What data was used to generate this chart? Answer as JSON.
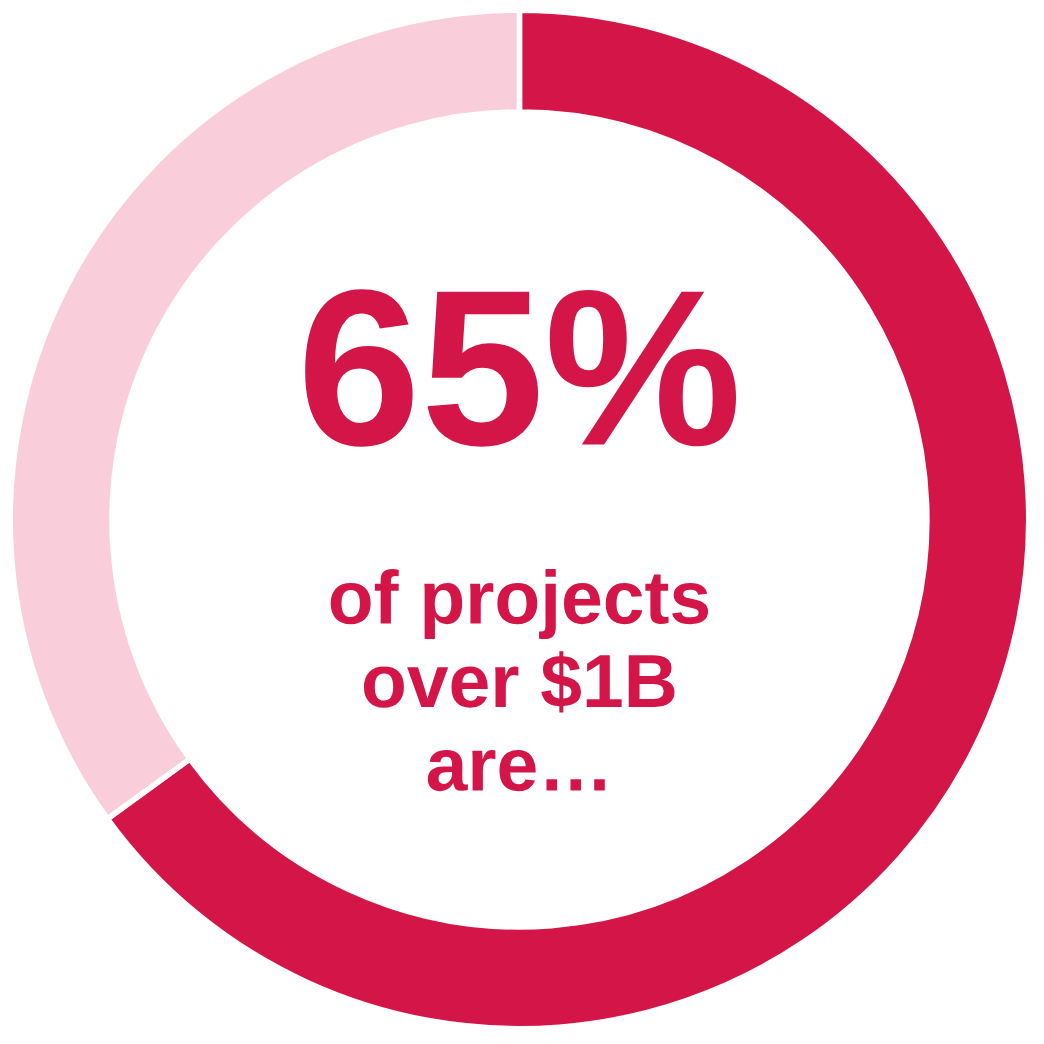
{
  "chart_data": {
    "type": "donut",
    "categories": [
      null,
      null
    ],
    "values": [
      65,
      35
    ],
    "colors": [
      "#d31548",
      "#f9cdd9"
    ],
    "annotations": [
      "65%",
      "of projects\nover $1B\nare…"
    ]
  }
}
